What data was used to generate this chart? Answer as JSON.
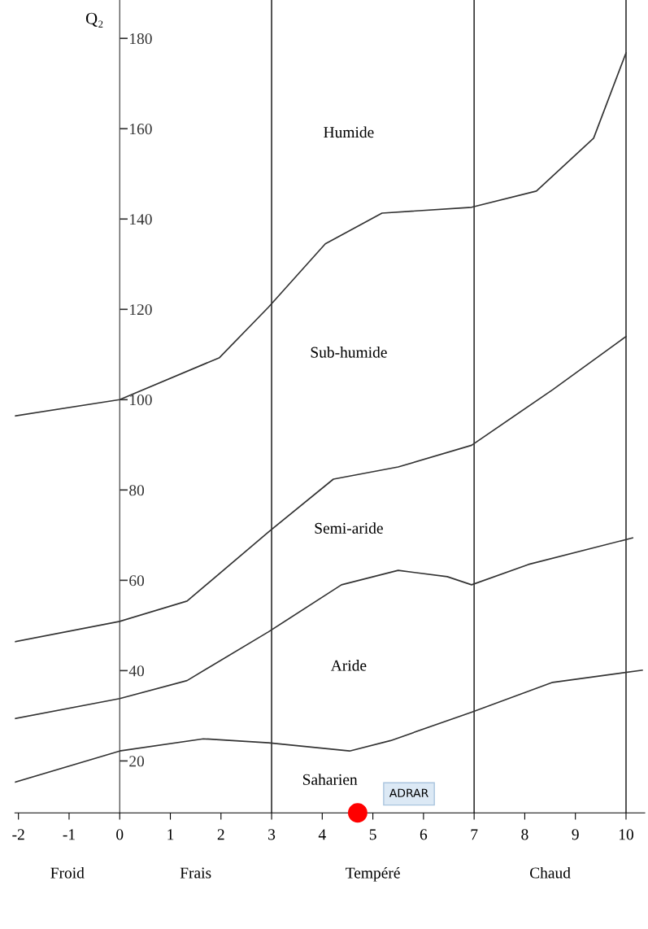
{
  "chart_data": {
    "type": "line",
    "ylabel": "Q₂",
    "xlim": [
      -2.07,
      10.37
    ],
    "ylim": [
      8.5,
      188.5
    ],
    "xticks": [
      -2,
      -1,
      0,
      1,
      2,
      3,
      4,
      5,
      6,
      7,
      8,
      9,
      10
    ],
    "yticks": [
      20,
      40,
      60,
      80,
      100,
      120,
      140,
      160,
      180
    ],
    "series": [
      {
        "color": "#333333",
        "x": [
          -2.07,
          0,
          1.97,
          2.94,
          4.06,
          5.18,
          6.95,
          8.23,
          9.36,
          10
        ],
        "values": [
          96.4,
          100,
          109.3,
          120.5,
          134.5,
          141.3,
          142.6,
          146.2,
          157.9,
          176.8
        ]
      },
      {
        "color": "#333333",
        "x": [
          -2.07,
          0,
          1.33,
          2.94,
          4.22,
          5.5,
          6.95,
          8.55,
          10
        ],
        "values": [
          46.4,
          50.9,
          55.4,
          70.7,
          82.4,
          85.1,
          89.9,
          102.2,
          114.0
        ]
      },
      {
        "color": "#333333",
        "x": [
          -2.07,
          0,
          1.33,
          2.94,
          4.38,
          5.5,
          6.47,
          6.95,
          8.07,
          10.13
        ],
        "values": [
          29.4,
          33.8,
          37.8,
          48.6,
          59.0,
          62.2,
          60.8,
          59.0,
          63.5,
          69.4
        ]
      },
      {
        "color": "#333333",
        "x": [
          -2.07,
          0,
          1.65,
          2.94,
          4.54,
          5.35,
          6.95,
          8.55,
          10.32
        ],
        "values": [
          15.3,
          22.2,
          24.9,
          24.0,
          22.2,
          24.5,
          30.8,
          37.4,
          40.1
        ]
      },
      {
        "type": "scatter",
        "name": "ADRAR",
        "color": "#ff0000",
        "marker": "circle",
        "x": [
          4.7
        ],
        "values": [
          8.5
        ]
      }
    ],
    "ref_lines": [
      {
        "axis": "x",
        "value": 3,
        "color": "#333333"
      },
      {
        "axis": "x",
        "value": 7,
        "color": "#333333"
      },
      {
        "axis": "x",
        "value": 10,
        "color": "#333333"
      }
    ],
    "annotations": [
      "Humide",
      "Sub-humide",
      "Semi-aride",
      "Aride",
      "Saharien",
      "Froid",
      "Frais",
      "Tempéré",
      "Chaud"
    ],
    "grid": false,
    "legend": false,
    "marker": "none",
    "line_style": "solid"
  }
}
